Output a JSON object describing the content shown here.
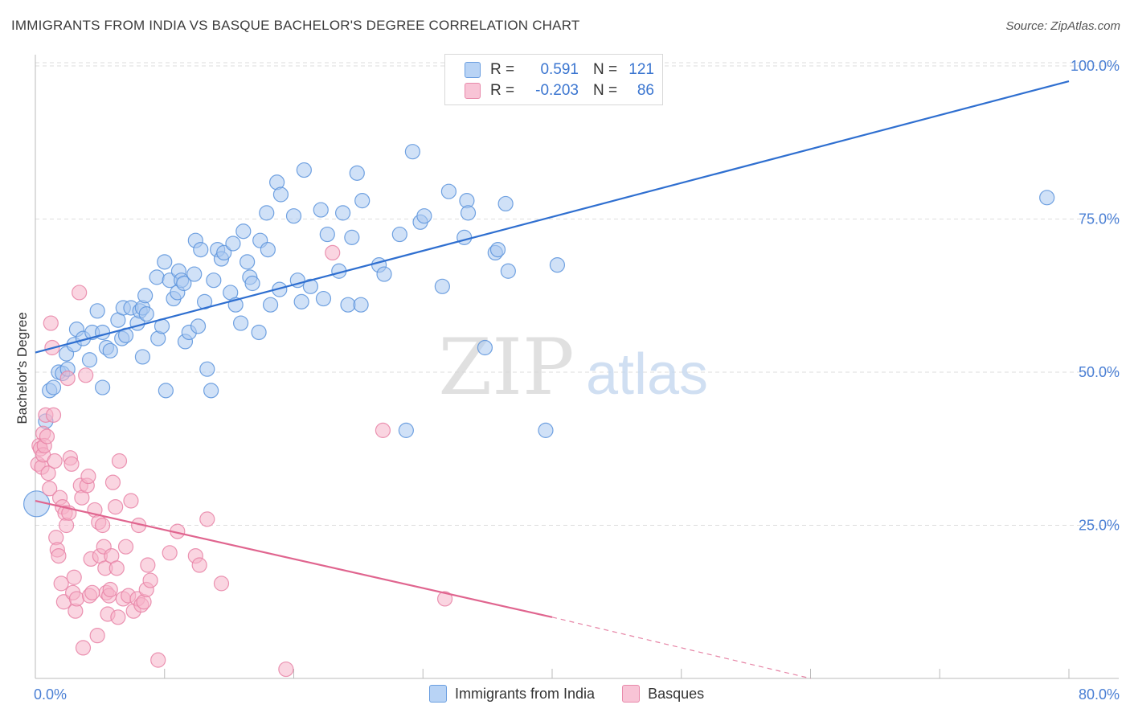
{
  "title": "IMMIGRANTS FROM INDIA VS BASQUE BACHELOR'S DEGREE CORRELATION CHART",
  "source": "Source: ZipAtlas.com",
  "watermark": {
    "zip": "ZIP",
    "atlas": "atlas"
  },
  "legend": {
    "rows": [
      {
        "r_label": "R =",
        "r_value": "0.591",
        "n_label": "N =",
        "n_value": "121"
      },
      {
        "r_label": "R =",
        "r_value": "-0.203",
        "n_label": "N =",
        "n_value": "86"
      }
    ]
  },
  "bottom_legend": [
    "Immigrants from India",
    "Basques"
  ],
  "colors": {
    "blue_fill": "#a9c8f0",
    "blue_stroke": "#5b93dc",
    "blue_line": "#2f6fd0",
    "pink_fill": "#f5b3c9",
    "pink_stroke": "#e883a6",
    "pink_line": "#e0658f",
    "tick_label": "#4a7fd4",
    "grid": "#dddddd"
  },
  "chart_data": {
    "type": "scatter",
    "title": "IMMIGRANTS FROM INDIA VS BASQUE BACHELOR'S DEGREE CORRELATION CHART",
    "xlabel": "",
    "ylabel": "Bachelor's Degree",
    "xlim": [
      0,
      80
    ],
    "ylim": [
      0,
      100
    ],
    "x_tick_labels": [
      "0.0%",
      "80.0%"
    ],
    "y_tick_labels": [
      {
        "value": 25,
        "label": "25.0%"
      },
      {
        "value": 50,
        "label": "50.0%"
      },
      {
        "value": 75,
        "label": "75.0%"
      },
      {
        "value": 100,
        "label": "100.0%"
      }
    ],
    "grid": true,
    "legend_position": "top-center",
    "series": [
      {
        "name": "Immigrants from India",
        "r": 0.591,
        "n": 121,
        "trend": {
          "x": [
            0,
            80
          ],
          "y": [
            53.2,
            97.5
          ],
          "dashed_from": null
        },
        "points": [
          [
            0.1,
            28.5
          ],
          [
            0.8,
            42
          ],
          [
            1.1,
            47
          ],
          [
            1.4,
            47.5
          ],
          [
            1.8,
            50
          ],
          [
            2.1,
            49.8
          ],
          [
            2.5,
            50.5
          ],
          [
            2.4,
            53
          ],
          [
            3.0,
            54.5
          ],
          [
            3.2,
            57
          ],
          [
            3.7,
            55.5
          ],
          [
            4.2,
            52
          ],
          [
            4.4,
            56.5
          ],
          [
            4.8,
            60
          ],
          [
            5.2,
            56.5
          ],
          [
            5.5,
            54
          ],
          [
            5.8,
            53.5
          ],
          [
            5.2,
            47.5
          ],
          [
            6.4,
            58.5
          ],
          [
            6.7,
            55.5
          ],
          [
            6.8,
            60.5
          ],
          [
            7.0,
            56
          ],
          [
            7.4,
            60.5
          ],
          [
            7.9,
            58
          ],
          [
            8.1,
            60
          ],
          [
            8.3,
            52.5
          ],
          [
            8.3,
            60.5
          ],
          [
            8.5,
            62.5
          ],
          [
            8.6,
            59.5
          ],
          [
            9.4,
            65.5
          ],
          [
            9.5,
            55.5
          ],
          [
            9.8,
            57.5
          ],
          [
            10.0,
            68
          ],
          [
            10.1,
            47
          ],
          [
            10.4,
            65
          ],
          [
            10.7,
            62
          ],
          [
            11.0,
            63
          ],
          [
            11.1,
            66.5
          ],
          [
            11.3,
            65
          ],
          [
            11.5,
            64.5
          ],
          [
            11.6,
            55
          ],
          [
            11.9,
            56.5
          ],
          [
            12.3,
            66
          ],
          [
            12.4,
            71.5
          ],
          [
            12.6,
            57.5
          ],
          [
            12.8,
            70
          ],
          [
            13.1,
            61.5
          ],
          [
            13.3,
            50.5
          ],
          [
            13.6,
            47
          ],
          [
            13.8,
            65
          ],
          [
            14.1,
            70
          ],
          [
            14.4,
            68.5
          ],
          [
            14.6,
            69.5
          ],
          [
            15.1,
            63
          ],
          [
            15.3,
            71
          ],
          [
            15.5,
            61
          ],
          [
            15.9,
            58
          ],
          [
            16.1,
            73
          ],
          [
            16.4,
            68
          ],
          [
            16.6,
            65.5
          ],
          [
            16.8,
            64.5
          ],
          [
            17.3,
            56.5
          ],
          [
            17.4,
            71.5
          ],
          [
            18.0,
            70
          ],
          [
            17.9,
            76
          ],
          [
            18.2,
            61
          ],
          [
            18.7,
            81
          ],
          [
            18.9,
            63.5
          ],
          [
            19.0,
            79
          ],
          [
            20.0,
            75.5
          ],
          [
            20.3,
            65
          ],
          [
            20.6,
            61.5
          ],
          [
            20.8,
            83
          ],
          [
            21.3,
            64
          ],
          [
            22.1,
            76.5
          ],
          [
            22.3,
            62
          ],
          [
            22.6,
            72.5
          ],
          [
            23.5,
            66.5
          ],
          [
            23.8,
            76
          ],
          [
            24.2,
            61
          ],
          [
            24.5,
            72
          ],
          [
            24.9,
            82.5
          ],
          [
            25.2,
            61
          ],
          [
            25.3,
            78
          ],
          [
            26.6,
            67.5
          ],
          [
            27.0,
            66
          ],
          [
            28.2,
            72.5
          ],
          [
            28.7,
            40.5
          ],
          [
            29.2,
            86
          ],
          [
            29.8,
            74.5
          ],
          [
            30.1,
            75.5
          ],
          [
            31.5,
            64
          ],
          [
            32.0,
            79.5
          ],
          [
            33.2,
            72
          ],
          [
            33.4,
            78
          ],
          [
            33.5,
            76
          ],
          [
            34.8,
            54
          ],
          [
            35.6,
            69.5
          ],
          [
            35.8,
            70
          ],
          [
            36.4,
            77.5
          ],
          [
            36.6,
            66.5
          ],
          [
            39.5,
            40.5
          ],
          [
            40.4,
            67.5
          ],
          [
            78.3,
            78.5
          ]
        ]
      },
      {
        "name": "Basques",
        "r": -0.203,
        "n": 86,
        "trend": {
          "x": [
            0,
            40
          ],
          "y": [
            29,
            10
          ],
          "dashed_from": 40,
          "dashed_to": [
            60,
            0
          ]
        },
        "points": [
          [
            0.2,
            35
          ],
          [
            0.3,
            38
          ],
          [
            0.4,
            37.5
          ],
          [
            0.5,
            34.5
          ],
          [
            0.6,
            40
          ],
          [
            0.6,
            36.5
          ],
          [
            0.7,
            38
          ],
          [
            0.8,
            43
          ],
          [
            0.9,
            39.5
          ],
          [
            1.0,
            33.5
          ],
          [
            1.1,
            31
          ],
          [
            1.2,
            58
          ],
          [
            1.3,
            54
          ],
          [
            1.4,
            43
          ],
          [
            1.5,
            35.5
          ],
          [
            1.6,
            23
          ],
          [
            1.7,
            21
          ],
          [
            1.8,
            20
          ],
          [
            1.9,
            29.5
          ],
          [
            2.0,
            15.5
          ],
          [
            2.1,
            28
          ],
          [
            2.2,
            12.5
          ],
          [
            2.3,
            27
          ],
          [
            2.4,
            25
          ],
          [
            2.5,
            49
          ],
          [
            2.6,
            27
          ],
          [
            2.7,
            36
          ],
          [
            2.8,
            35
          ],
          [
            2.9,
            14
          ],
          [
            3.0,
            16.5
          ],
          [
            3.1,
            11
          ],
          [
            3.2,
            13
          ],
          [
            3.4,
            63
          ],
          [
            3.5,
            31.5
          ],
          [
            3.6,
            29.5
          ],
          [
            3.7,
            5
          ],
          [
            3.9,
            49.5
          ],
          [
            4.0,
            31.5
          ],
          [
            4.1,
            33
          ],
          [
            4.2,
            13.5
          ],
          [
            4.3,
            19.5
          ],
          [
            4.4,
            14
          ],
          [
            4.6,
            27.5
          ],
          [
            4.8,
            7
          ],
          [
            4.9,
            25.5
          ],
          [
            5.0,
            20
          ],
          [
            5.2,
            25
          ],
          [
            5.3,
            21.5
          ],
          [
            5.4,
            18
          ],
          [
            5.5,
            14
          ],
          [
            5.6,
            10.5
          ],
          [
            5.7,
            13.5
          ],
          [
            5.8,
            14.5
          ],
          [
            5.9,
            20
          ],
          [
            6.0,
            32
          ],
          [
            6.2,
            28
          ],
          [
            6.3,
            18
          ],
          [
            6.4,
            10
          ],
          [
            6.5,
            35.5
          ],
          [
            6.8,
            13
          ],
          [
            7.0,
            21.5
          ],
          [
            7.2,
            13.5
          ],
          [
            7.4,
            29
          ],
          [
            7.6,
            11
          ],
          [
            7.9,
            13
          ],
          [
            8.0,
            25
          ],
          [
            8.2,
            12
          ],
          [
            8.4,
            12.5
          ],
          [
            8.6,
            14.5
          ],
          [
            8.7,
            18.5
          ],
          [
            8.9,
            16
          ],
          [
            9.5,
            3
          ],
          [
            10.4,
            20.5
          ],
          [
            11.0,
            24
          ],
          [
            12.4,
            20
          ],
          [
            12.7,
            18.5
          ],
          [
            13.3,
            26
          ],
          [
            14.4,
            15.5
          ],
          [
            19.4,
            1.5
          ],
          [
            23.0,
            69.5
          ],
          [
            26.9,
            40.5
          ],
          [
            31.7,
            13
          ]
        ]
      }
    ]
  }
}
